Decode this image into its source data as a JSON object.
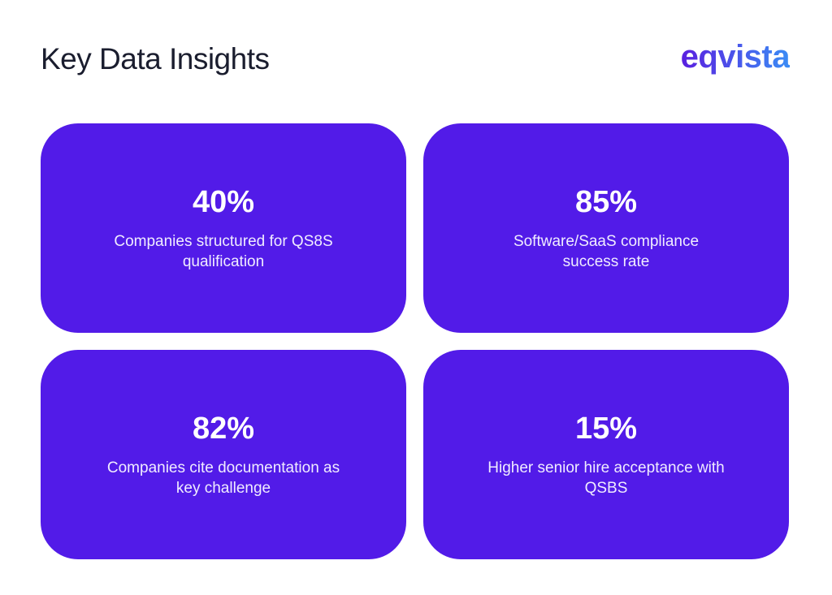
{
  "header": {
    "title": "Key Data Insights",
    "logo": "eqvista"
  },
  "colors": {
    "card": "#521be8"
  },
  "cards": [
    {
      "value": "40%",
      "description": "Companies structured for QS8S qualification"
    },
    {
      "value": "85%",
      "description": "Software/SaaS compliance success rate"
    },
    {
      "value": "82%",
      "description": "Companies cite documentation as key challenge"
    },
    {
      "value": "15%",
      "description": "Higher senior hire acceptance with QSBS"
    }
  ]
}
